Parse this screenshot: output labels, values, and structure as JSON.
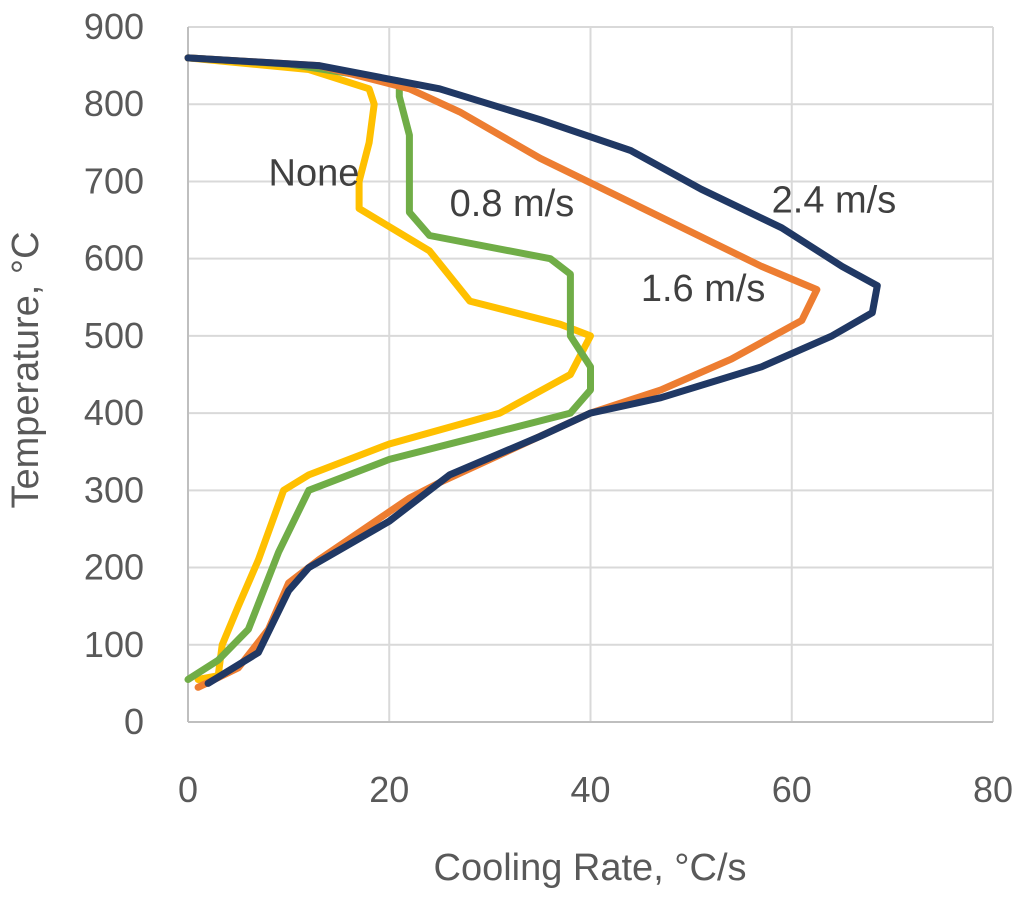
{
  "chart_data": {
    "type": "line",
    "xlabel": "Cooling Rate, °C/s",
    "ylabel": "Temperature, °C",
    "xlim": [
      0,
      80
    ],
    "ylim": [
      0,
      900
    ],
    "xticks": [
      0,
      20,
      40,
      60,
      80
    ],
    "yticks": [
      0,
      100,
      200,
      300,
      400,
      500,
      600,
      700,
      800,
      900
    ],
    "grid": true,
    "series": [
      {
        "name": "None",
        "color": "#ffc000",
        "points": [
          [
            1,
            55
          ],
          [
            3,
            60
          ],
          [
            3.4,
            100
          ],
          [
            5,
            150
          ],
          [
            7,
            210
          ],
          [
            9.5,
            300
          ],
          [
            12,
            320
          ],
          [
            20,
            360
          ],
          [
            31,
            400
          ],
          [
            38,
            450
          ],
          [
            40,
            500
          ],
          [
            37,
            515
          ],
          [
            28,
            545
          ],
          [
            24,
            610
          ],
          [
            17,
            665
          ],
          [
            17,
            700
          ],
          [
            18,
            750
          ],
          [
            18.5,
            800
          ],
          [
            18,
            820
          ],
          [
            12,
            845
          ],
          [
            0,
            860
          ]
        ]
      },
      {
        "name": "0.8 m/s",
        "color": "#70ad47",
        "points": [
          [
            0,
            55
          ],
          [
            3,
            80
          ],
          [
            6,
            120
          ],
          [
            9,
            220
          ],
          [
            12,
            300
          ],
          [
            20,
            340
          ],
          [
            29,
            370
          ],
          [
            38,
            400
          ],
          [
            40,
            430
          ],
          [
            40,
            460
          ],
          [
            38,
            500
          ],
          [
            38,
            580
          ],
          [
            36,
            600
          ],
          [
            24,
            630
          ],
          [
            22,
            660
          ],
          [
            22,
            700
          ],
          [
            22,
            760
          ],
          [
            21,
            810
          ],
          [
            21,
            830
          ],
          [
            10,
            852
          ],
          [
            0,
            860
          ]
        ]
      },
      {
        "name": "1.6 m/s",
        "color": "#ed7d31",
        "points": [
          [
            1,
            45
          ],
          [
            5,
            70
          ],
          [
            8,
            120
          ],
          [
            10,
            180
          ],
          [
            13,
            210
          ],
          [
            22,
            290
          ],
          [
            25,
            310
          ],
          [
            30,
            340
          ],
          [
            40,
            400
          ],
          [
            47,
            430
          ],
          [
            54,
            470
          ],
          [
            61,
            520
          ],
          [
            62.5,
            560
          ],
          [
            57,
            590
          ],
          [
            46,
            660
          ],
          [
            35,
            730
          ],
          [
            27,
            790
          ],
          [
            22,
            820
          ],
          [
            13,
            850
          ],
          [
            0,
            860
          ]
        ]
      },
      {
        "name": "2.4 m/s",
        "color": "#203864",
        "points": [
          [
            2,
            50
          ],
          [
            7,
            90
          ],
          [
            10,
            170
          ],
          [
            12,
            200
          ],
          [
            20,
            260
          ],
          [
            26,
            320
          ],
          [
            35,
            370
          ],
          [
            40,
            400
          ],
          [
            47,
            420
          ],
          [
            57,
            460
          ],
          [
            64,
            500
          ],
          [
            68,
            530
          ],
          [
            68.5,
            565
          ],
          [
            65,
            590
          ],
          [
            59,
            640
          ],
          [
            51,
            690
          ],
          [
            44,
            740
          ],
          [
            35,
            780
          ],
          [
            25,
            820
          ],
          [
            13,
            850
          ],
          [
            0,
            860
          ]
        ]
      }
    ],
    "series_labels": [
      {
        "name": "None",
        "x": 8,
        "y": 695
      },
      {
        "name": "0.8 m/s",
        "x": 26,
        "y": 655
      },
      {
        "name": "1.6 m/s",
        "x": 45,
        "y": 545
      },
      {
        "name": "2.4 m/s",
        "x": 58,
        "y": 660
      }
    ]
  }
}
